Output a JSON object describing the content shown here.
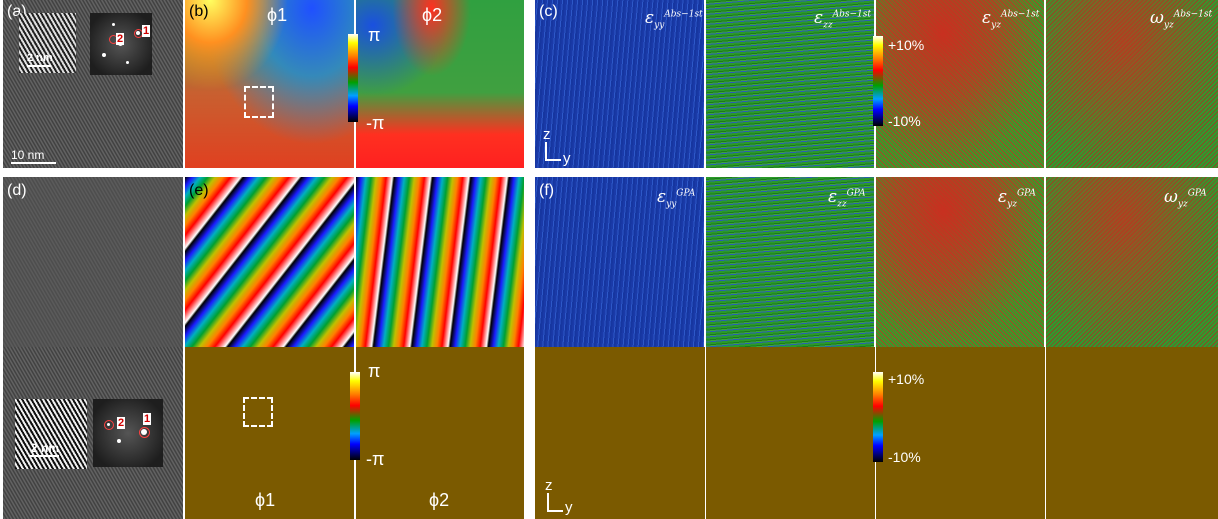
{
  "labels": {
    "a": "(a)",
    "b": "(b)",
    "c": "(c)",
    "d": "(d)",
    "e": "(e)",
    "f": "(f)"
  },
  "scale_small": "2 nm",
  "scale_large": "10 nm",
  "fft_spots": {
    "one": "1",
    "two": "2"
  },
  "phase": {
    "phi1": "ϕ1",
    "phi2": "ϕ2",
    "pi_plus": "π",
    "pi_minus": "-π"
  },
  "strain_scale": {
    "plus": "+10%",
    "minus": "-10%"
  },
  "axes": {
    "z": "z",
    "y": "y"
  },
  "abs_maps": {
    "eyy": {
      "sym": "ε",
      "sub": "yy",
      "sup": "Abs−1st"
    },
    "ezz": {
      "sym": "ε",
      "sub": "zz",
      "sup": "Abs−1st"
    },
    "eyz": {
      "sym": "ε",
      "sub": "yz",
      "sup": "Abs−1st"
    },
    "wyz": {
      "sym": "ω",
      "sub": "yz",
      "sup": "Abs−1st"
    }
  },
  "gpa_maps": {
    "eyy": {
      "sym": "ε",
      "sub": "yy",
      "sup": "GPA"
    },
    "ezz": {
      "sym": "ε",
      "sub": "zz",
      "sup": "GPA"
    },
    "eyz": {
      "sym": "ε",
      "sub": "yz",
      "sup": "GPA"
    },
    "wyz": {
      "sym": "ω",
      "sub": "yz",
      "sup": "GPA"
    }
  },
  "colors": {
    "brown": "#7b5a00",
    "blue": "#2040b0",
    "green": "#289a28",
    "red": "#c83020"
  }
}
